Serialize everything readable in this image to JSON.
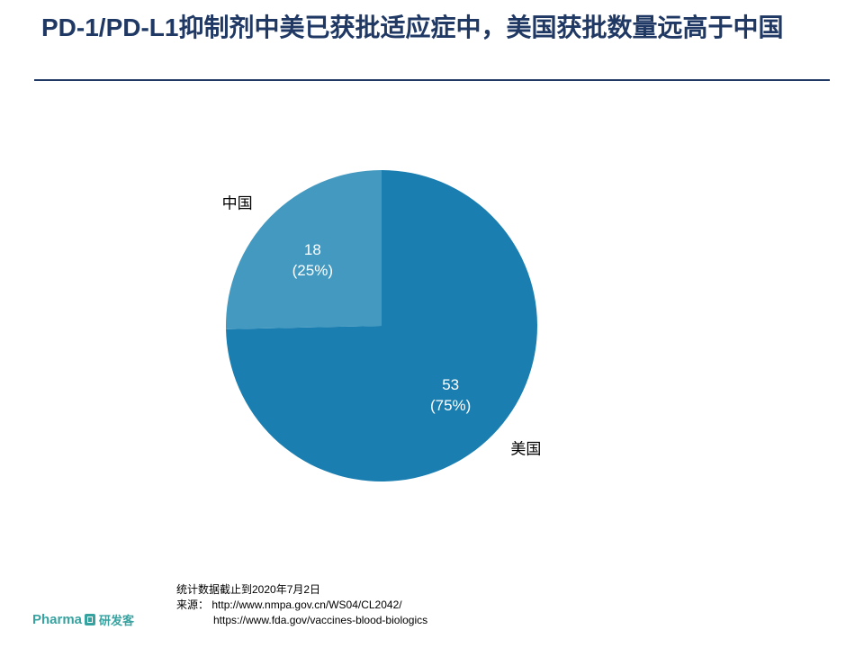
{
  "page": {
    "title": "PD-1/PD-L1抑制剂中美已获批适应症中，美国获批数量远高于中国"
  },
  "chart_data": {
    "type": "pie",
    "title": "",
    "slices": [
      {
        "name": "美国",
        "value": 53,
        "percent_label": "(75%)",
        "color": "#1a7eb0"
      },
      {
        "name": "中国",
        "value": 18,
        "percent_label": "(25%)",
        "color": "#4399c0"
      }
    ],
    "start_angle_deg": 0,
    "direction": "clockwise",
    "legend": "none"
  },
  "footnote": {
    "date_note": "统计数据截止到2020年7月2日",
    "source_label": "来源：",
    "source_1": "http://www.nmpa.gov.cn/WS04/CL2042/",
    "source_2": "https://www.fda.gov/vaccines-blood-biologics"
  },
  "logo": {
    "text_en": "Pharma",
    "text_cn": "研发客",
    "icon": "pharma-logo-icon"
  }
}
